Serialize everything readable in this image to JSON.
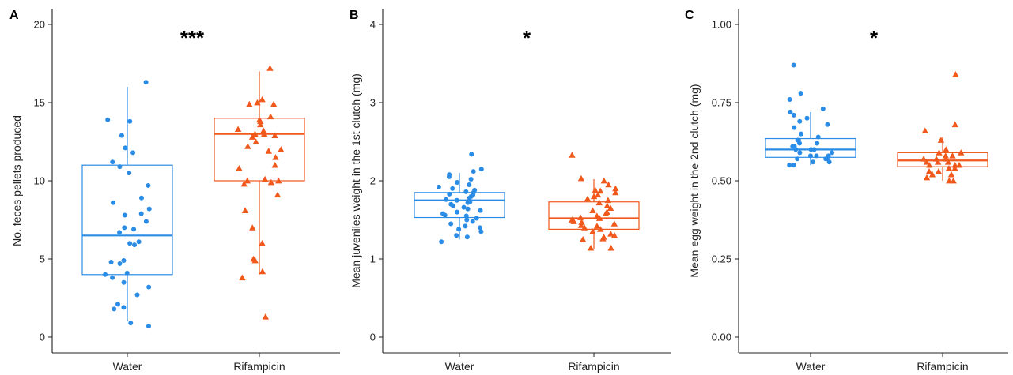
{
  "colors": {
    "water": "#2b8ce6",
    "rifampicin": "#f0581c"
  },
  "chart_data": [
    {
      "type": "box",
      "panel": "A",
      "significance": "***",
      "title": "",
      "xlabel": "",
      "ylabel": "No. feces pellets produced",
      "ylim": [
        0,
        20
      ],
      "yticks": [
        0,
        5,
        10,
        15,
        20
      ],
      "categories": [
        "Water",
        "Rifampicin"
      ],
      "series": [
        {
          "name": "Water",
          "marker": "circle",
          "box": {
            "min": 1,
            "q1": 4,
            "median": 6.5,
            "q3": 11,
            "max": 16
          },
          "points": [
            16.3,
            13.9,
            13.8,
            12.9,
            12.1,
            11.8,
            11.2,
            10.9,
            10.5,
            9.7,
            8.9,
            8.6,
            8.2,
            7.9,
            7.8,
            7.4,
            7,
            6.9,
            6.7,
            6.1,
            6,
            5.9,
            4.9,
            4.8,
            4.7,
            4.1,
            4,
            3.8,
            3.5,
            3.2,
            2.7,
            2.1,
            1.9,
            1.8,
            0.9,
            0.7
          ]
        },
        {
          "name": "Rifampicin",
          "marker": "triangle",
          "box": {
            "min": 4,
            "q1": 10,
            "median": 13,
            "q3": 14,
            "max": 17
          },
          "points": [
            17.2,
            15.2,
            15,
            14.9,
            14.9,
            14.1,
            13.9,
            13.8,
            13.6,
            13.3,
            13.2,
            13,
            13,
            12.9,
            12.8,
            12.5,
            12.2,
            12,
            11.9,
            11.5,
            11,
            10.8,
            10.1,
            10,
            10,
            9.9,
            9.8,
            9.1,
            8.1,
            7,
            6,
            5,
            4.9,
            4.2,
            3.8,
            1.3
          ]
        }
      ]
    },
    {
      "type": "box",
      "panel": "B",
      "significance": "*",
      "title": "",
      "xlabel": "",
      "ylabel": "Mean juveniles weight in the 1st clutch (mg)",
      "ylim": [
        0,
        4
      ],
      "yticks": [
        0,
        1,
        2,
        3,
        4
      ],
      "categories": [
        "Water",
        "Rifampicin"
      ],
      "series": [
        {
          "name": "Water",
          "marker": "circle",
          "box": {
            "min": 1.25,
            "q1": 1.53,
            "median": 1.75,
            "q3": 1.85,
            "max": 2.1
          },
          "points": [
            2.34,
            2.15,
            2.12,
            2.08,
            2.05,
            2.02,
            1.98,
            1.95,
            1.92,
            1.9,
            1.88,
            1.86,
            1.85,
            1.83,
            1.82,
            1.8,
            1.78,
            1.76,
            1.75,
            1.73,
            1.72,
            1.7,
            1.68,
            1.66,
            1.64,
            1.62,
            1.6,
            1.58,
            1.56,
            1.55,
            1.52,
            1.5,
            1.48,
            1.45,
            1.42,
            1.4,
            1.38,
            1.35,
            1.3,
            1.28,
            1.22
          ]
        },
        {
          "name": "Rifampicin",
          "marker": "triangle",
          "box": {
            "min": 1.13,
            "q1": 1.38,
            "median": 1.52,
            "q3": 1.73,
            "max": 2.02
          },
          "points": [
            2.33,
            2.03,
            2,
            1.95,
            1.9,
            1.88,
            1.87,
            1.85,
            1.82,
            1.8,
            1.77,
            1.75,
            1.72,
            1.68,
            1.65,
            1.62,
            1.6,
            1.58,
            1.55,
            1.53,
            1.52,
            1.5,
            1.48,
            1.47,
            1.45,
            1.43,
            1.42,
            1.4,
            1.38,
            1.35,
            1.32,
            1.3,
            1.28,
            1.26,
            1.25,
            1.14,
            1.14
          ]
        }
      ]
    },
    {
      "type": "box",
      "panel": "C",
      "significance": "*",
      "title": "",
      "xlabel": "",
      "ylabel": "Mean egg weight in  the 2nd clutch (mg)",
      "ylim": [
        0,
        1
      ],
      "yticks": [
        0,
        0.25,
        0.5,
        0.75,
        1
      ],
      "ytick_labels": [
        "0.00",
        "0.25",
        "0.50",
        "0.75",
        "1.00"
      ],
      "categories": [
        "Water",
        "Rifampicin"
      ],
      "series": [
        {
          "name": "Water",
          "marker": "circle",
          "box": {
            "min": 0.55,
            "q1": 0.575,
            "median": 0.6,
            "q3": 0.635,
            "max": 0.72
          },
          "points": [
            0.87,
            0.78,
            0.76,
            0.73,
            0.72,
            0.71,
            0.7,
            0.69,
            0.68,
            0.67,
            0.65,
            0.64,
            0.63,
            0.63,
            0.62,
            0.62,
            0.61,
            0.61,
            0.6,
            0.6,
            0.6,
            0.59,
            0.59,
            0.58,
            0.58,
            0.58,
            0.57,
            0.57,
            0.57,
            0.56,
            0.56,
            0.55,
            0.55
          ]
        },
        {
          "name": "Rifampicin",
          "marker": "triangle",
          "box": {
            "min": 0.5,
            "q1": 0.545,
            "median": 0.565,
            "q3": 0.59,
            "max": 0.64
          },
          "points": [
            0.84,
            0.68,
            0.66,
            0.63,
            0.6,
            0.59,
            0.59,
            0.58,
            0.58,
            0.57,
            0.57,
            0.57,
            0.56,
            0.56,
            0.56,
            0.55,
            0.55,
            0.55,
            0.54,
            0.54,
            0.53,
            0.53,
            0.52,
            0.52,
            0.51,
            0.5,
            0.5
          ]
        }
      ]
    }
  ]
}
